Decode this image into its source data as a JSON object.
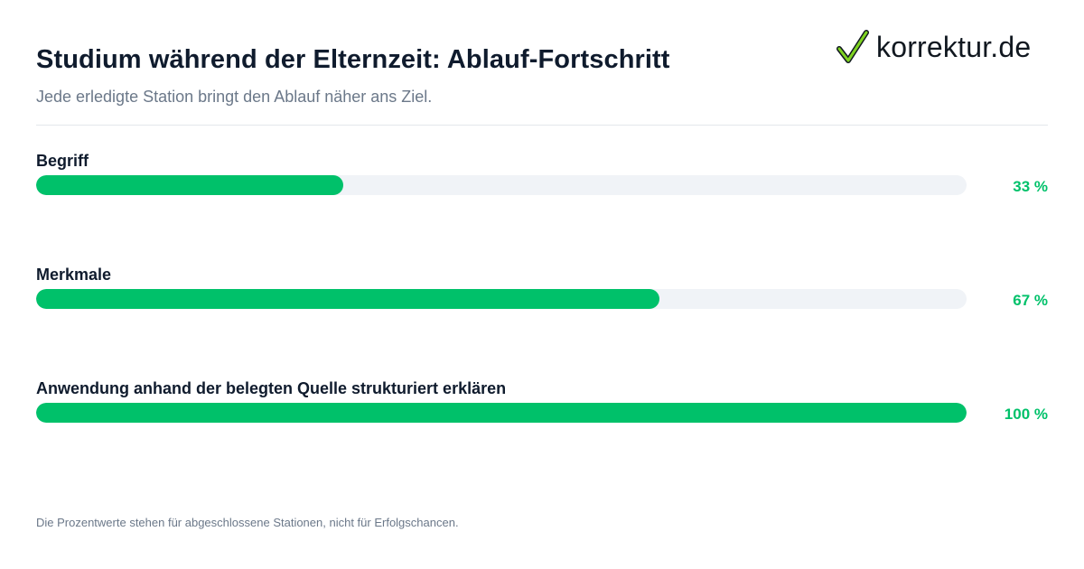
{
  "header": {
    "title": "Studium während der Elternzeit: Ablauf-Fortschritt",
    "subtitle": "Jede erledigte Station bringt den Ablauf näher ans Ziel."
  },
  "brand": {
    "logo_text": "korrektur.de",
    "logo_icon": "checkmark-icon",
    "accent_color": "#00c16a"
  },
  "chart_data": {
    "type": "bar",
    "orientation": "horizontal",
    "title": "Studium während der Elternzeit: Ablauf-Fortschritt",
    "subtitle": "Jede erledigte Station bringt den Ablauf näher ans Ziel.",
    "categories": [
      "Begriff",
      "Merkmale",
      "Anwendung anhand der belegten Quelle strukturiert erklären"
    ],
    "values": [
      33,
      67,
      100
    ],
    "value_labels": [
      "33 %",
      "67 %",
      "100 %"
    ],
    "xlim": [
      0,
      100
    ],
    "grid": false,
    "bar_color": "#00c16a",
    "track_color": "#f0f3f7"
  },
  "footer": {
    "note": "Die Prozentwerte stehen für abgeschlossene Stationen, nicht für Erfolgschancen."
  }
}
